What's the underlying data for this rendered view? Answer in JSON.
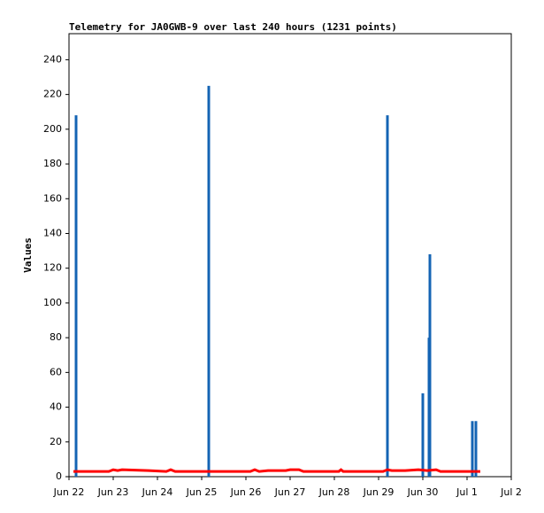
{
  "chart_data": {
    "type": "line",
    "title": "Telemetry for JA0GWB-9 over last 240 hours (1231 points)",
    "ylabel": "Values",
    "xlim": [
      0,
      10
    ],
    "ylim": [
      0,
      255
    ],
    "xticks": [
      {
        "value": 0,
        "label": "Jun 22"
      },
      {
        "value": 1,
        "label": "Jun 23"
      },
      {
        "value": 2,
        "label": "Jun 24"
      },
      {
        "value": 3,
        "label": "Jun 25"
      },
      {
        "value": 4,
        "label": "Jun 26"
      },
      {
        "value": 5,
        "label": "Jun 27"
      },
      {
        "value": 6,
        "label": "Jun 28"
      },
      {
        "value": 7,
        "label": "Jun 29"
      },
      {
        "value": 8,
        "label": "Jun 30"
      },
      {
        "value": 9,
        "label": "Jul 1"
      },
      {
        "value": 10,
        "label": "Jul 2"
      }
    ],
    "yticks": [
      0,
      20,
      40,
      60,
      80,
      100,
      120,
      140,
      160,
      180,
      200,
      220,
      240
    ],
    "series": [
      {
        "type": "impulse",
        "color": "#1464b4",
        "x": [
          0.16,
          3.16,
          7.2,
          8.0,
          8.14,
          8.16,
          9.12,
          9.2
        ],
        "values": [
          208,
          225,
          208,
          48,
          80,
          128,
          32,
          32
        ]
      },
      {
        "type": "line",
        "color": "#ff0000",
        "x": [
          0.1,
          0.9,
          1.0,
          1.1,
          1.2,
          1.8,
          2.2,
          2.3,
          2.4,
          4.1,
          4.2,
          4.3,
          4.5,
          4.9,
          5.0,
          5.2,
          5.3,
          6.1,
          6.15,
          6.2,
          7.1,
          7.2,
          7.3,
          7.6,
          7.9,
          8.1,
          8.3,
          8.4,
          9.1,
          9.3
        ],
        "values": [
          3,
          3,
          4,
          3.5,
          4,
          3.5,
          3,
          4,
          3,
          3,
          4,
          3,
          3.5,
          3.5,
          4,
          4,
          3,
          3,
          4,
          3,
          3,
          4,
          3.5,
          3.5,
          4,
          3.5,
          4,
          3,
          3,
          3
        ]
      }
    ]
  }
}
